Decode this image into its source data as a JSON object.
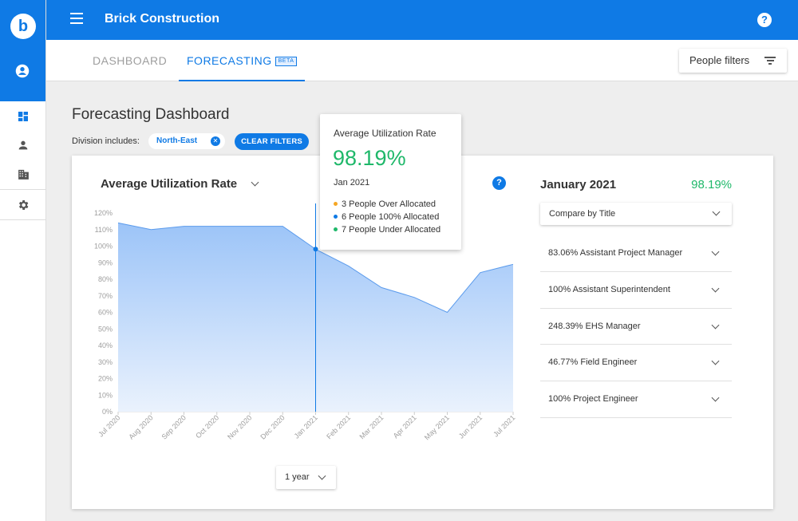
{
  "app": {
    "title": "Brick Construction",
    "logo_letter": "b"
  },
  "sidebar": {
    "items": [
      {
        "name": "dashboard",
        "icon": "dashboard-grid-icon"
      },
      {
        "name": "people",
        "icon": "person-icon"
      },
      {
        "name": "buildings",
        "icon": "building-icon"
      },
      {
        "name": "settings",
        "icon": "gear-icon"
      }
    ]
  },
  "tabs": [
    {
      "label": "DASHBOARD",
      "active": false
    },
    {
      "label": "FORECASTING",
      "badge": "BETA",
      "active": true
    }
  ],
  "people_filters_label": "People filters",
  "page": {
    "title": "Forecasting Dashboard",
    "division_label": "Division includes:",
    "division_chip": "North-East",
    "clear_filters": "CLEAR FILTERS"
  },
  "chart": {
    "title": "Average Utilization Rate",
    "range_select": "1 year"
  },
  "chart_data": {
    "type": "area",
    "x": [
      "Jul 2020",
      "Aug 2020",
      "Sep 2020",
      "Oct 2020",
      "Nov 2020",
      "Dec 2020",
      "Jan 2021",
      "Feb 2021",
      "Mar 2021",
      "Apr 2021",
      "May 2021",
      "Jun 2021",
      "Jul 2021"
    ],
    "series": [
      {
        "values": [
          114,
          110,
          112,
          112,
          112,
          112,
          98.19,
          88,
          75,
          69,
          60,
          84,
          89
        ]
      }
    ],
    "ylim": [
      0,
      120
    ],
    "yticks": [
      "0%",
      "10%",
      "20%",
      "30%",
      "40%",
      "50%",
      "60%",
      "70%",
      "80%",
      "90%",
      "100%",
      "110%",
      "120%"
    ],
    "highlight_index": 6,
    "grid": false,
    "colors": {
      "line": "#5b9bec",
      "fill_top": "#9cc4f8",
      "fill_bottom": "#eaf2fd"
    }
  },
  "tooltip": {
    "title": "Average Utilization Rate",
    "value": "98.19%",
    "date": "Jan 2021",
    "lines": [
      {
        "text": "3 People Over Allocated",
        "color": "#f5a623"
      },
      {
        "text": "6 People 100% Allocated",
        "color": "#0f7ae5"
      },
      {
        "text": "7 People Under Allocated",
        "color": "#1fb86a"
      }
    ]
  },
  "summary": {
    "month": "January 2021",
    "value": "98.19%",
    "compare_select": "Compare by Title",
    "titles": [
      "83.06% Assistant Project Manager",
      "100% Assistant Superintendent",
      "248.39% EHS Manager",
      "46.77% Field Engineer",
      "100% Project Engineer"
    ]
  }
}
